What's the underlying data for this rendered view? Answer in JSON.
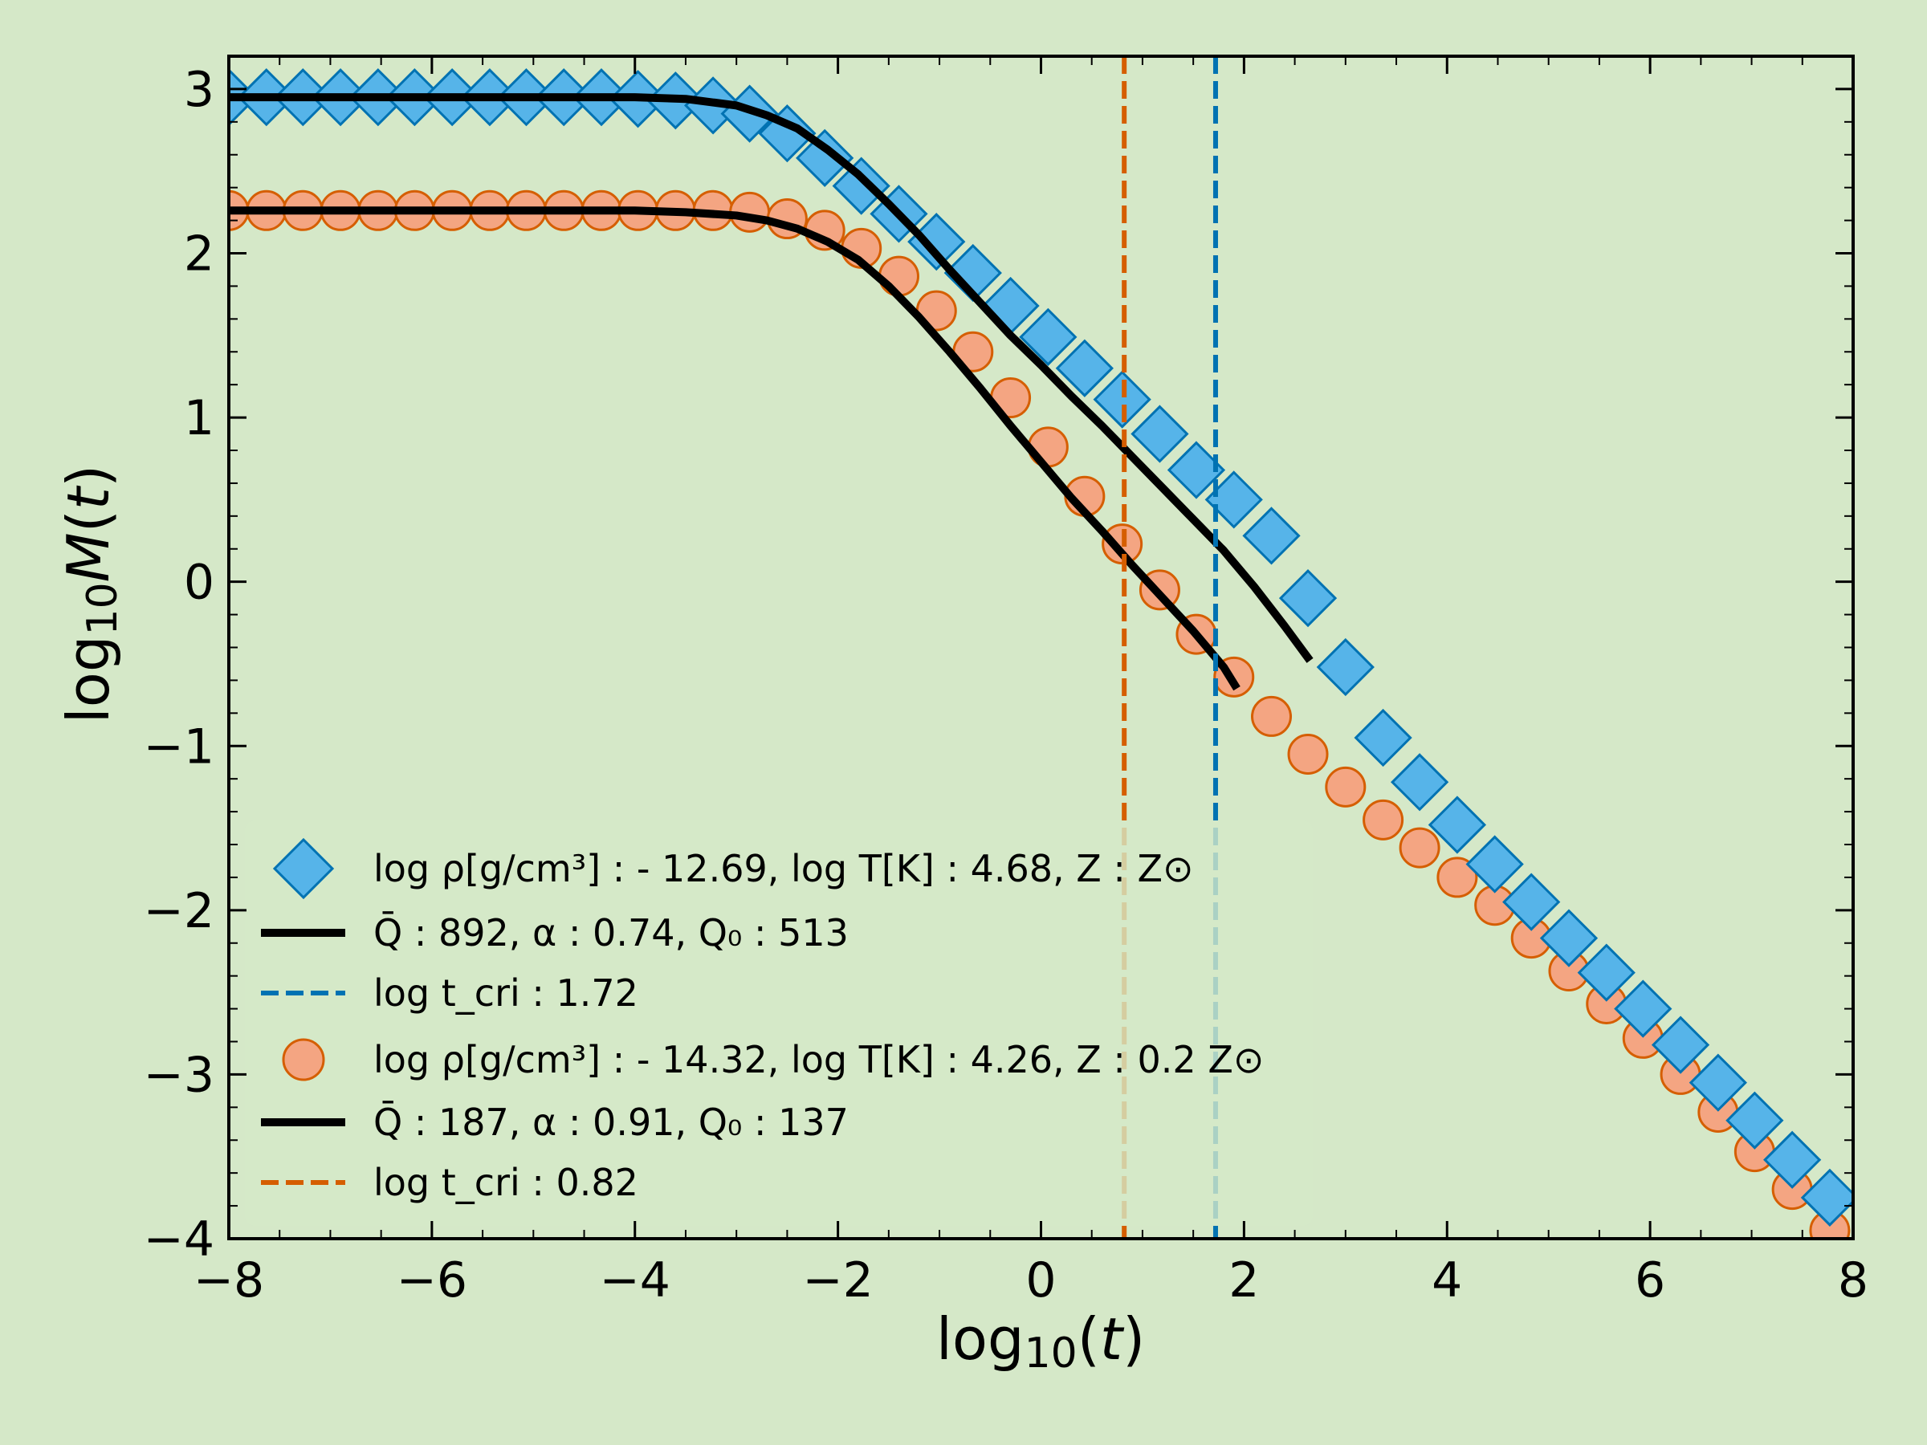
{
  "chart_data": {
    "type": "scatter",
    "title": "",
    "xlabel": "log10(t)",
    "ylabel": "log10M(t)",
    "xlim": [
      -8,
      8
    ],
    "ylim": [
      -4,
      3.2
    ],
    "xticks": [
      -8,
      -6,
      -4,
      -2,
      0,
      2,
      4,
      6,
      8
    ],
    "yticks": [
      -4,
      -3,
      -2,
      -1,
      0,
      1,
      2,
      3
    ],
    "xtick_labels": [
      "−8",
      "−6",
      "−4",
      "−2",
      "0",
      "2",
      "4",
      "6",
      "8"
    ],
    "ytick_labels": [
      "−4",
      "−3",
      "−2",
      "−1",
      "0",
      "1",
      "2",
      "3"
    ],
    "grid": false,
    "legend_position": "bottom-left",
    "colors": {
      "background": "#d5e8c8",
      "diamond_fill": "#56b4e9",
      "diamond_edge": "#0072b2",
      "circle_fill": "#f4a582",
      "circle_edge": "#d55e00",
      "blue_vline": "#0072b2",
      "orange_vline": "#d55e00",
      "fit_line": "#000000"
    },
    "series": [
      {
        "name": "log ρ[g/cm³] : - 12.69, log T[K] : 4.68, Z : Z⊙",
        "marker": "diamond",
        "x": [
          -8.0,
          -7.63,
          -7.27,
          -6.9,
          -6.53,
          -6.17,
          -5.8,
          -5.43,
          -5.07,
          -4.7,
          -4.33,
          -3.97,
          -3.6,
          -3.23,
          -2.87,
          -2.5,
          -2.13,
          -1.77,
          -1.4,
          -1.03,
          -0.67,
          -0.3,
          0.07,
          0.43,
          0.8,
          1.17,
          1.53,
          1.9,
          2.27,
          2.63,
          3.0,
          3.37,
          3.73,
          4.1,
          4.47,
          4.83,
          5.2,
          5.57,
          5.93,
          6.3,
          6.67,
          7.03,
          7.4,
          7.77
        ],
        "y": [
          2.95,
          2.95,
          2.95,
          2.95,
          2.95,
          2.95,
          2.95,
          2.95,
          2.95,
          2.95,
          2.95,
          2.94,
          2.93,
          2.9,
          2.85,
          2.73,
          2.58,
          2.41,
          2.24,
          2.07,
          1.88,
          1.68,
          1.49,
          1.3,
          1.11,
          0.9,
          0.68,
          0.5,
          0.28,
          -0.1,
          -0.52,
          -0.95,
          -1.22,
          -1.48,
          -1.72,
          -1.95,
          -2.17,
          -2.38,
          -2.6,
          -2.82,
          -3.05,
          -3.28,
          -3.52,
          -3.75
        ]
      },
      {
        "name": "Q̄ : 892, α : 0.74, Q₀ : 513",
        "marker": "line",
        "x": [
          -8.0,
          -6.0,
          -4.0,
          -3.5,
          -3.0,
          -2.7,
          -2.4,
          -2.1,
          -1.8,
          -1.5,
          -1.2,
          -0.9,
          -0.6,
          -0.3,
          0.0,
          0.3,
          0.6,
          0.9,
          1.2,
          1.5,
          1.8,
          2.1,
          2.4,
          2.65
        ],
        "y": [
          2.95,
          2.95,
          2.95,
          2.94,
          2.9,
          2.84,
          2.76,
          2.63,
          2.48,
          2.3,
          2.11,
          1.9,
          1.7,
          1.5,
          1.32,
          1.13,
          0.95,
          0.76,
          0.57,
          0.38,
          0.19,
          -0.03,
          -0.27,
          -0.48
        ]
      },
      {
        "name": "log  t_cri : 1.72",
        "marker": "vline",
        "x": [
          1.72
        ]
      },
      {
        "name": "log ρ[g/cm³] : - 14.32, log T[K] : 4.26, Z : 0.2 Z⊙",
        "marker": "circle",
        "x": [
          -8.0,
          -7.63,
          -7.27,
          -6.9,
          -6.53,
          -6.17,
          -5.8,
          -5.43,
          -5.07,
          -4.7,
          -4.33,
          -3.97,
          -3.6,
          -3.23,
          -2.87,
          -2.5,
          -2.13,
          -1.77,
          -1.4,
          -1.03,
          -0.67,
          -0.3,
          0.07,
          0.43,
          0.8,
          1.17,
          1.53,
          1.9,
          2.27,
          2.63,
          3.0,
          3.37,
          3.73,
          4.1,
          4.47,
          4.83,
          5.2,
          5.57,
          5.93,
          6.3,
          6.67,
          7.03,
          7.4,
          7.77
        ],
        "y": [
          2.26,
          2.26,
          2.26,
          2.26,
          2.26,
          2.26,
          2.26,
          2.26,
          2.26,
          2.26,
          2.26,
          2.26,
          2.26,
          2.26,
          2.25,
          2.21,
          2.14,
          2.03,
          1.86,
          1.65,
          1.4,
          1.12,
          0.82,
          0.52,
          0.23,
          -0.05,
          -0.32,
          -0.58,
          -0.82,
          -1.05,
          -1.25,
          -1.45,
          -1.62,
          -1.8,
          -1.97,
          -2.17,
          -2.37,
          -2.57,
          -2.78,
          -3.0,
          -3.23,
          -3.47,
          -3.7,
          -3.95
        ]
      },
      {
        "name": "Q̄ : 187, α : 0.91, Q₀ : 137",
        "marker": "line",
        "x": [
          -8.0,
          -6.0,
          -4.0,
          -3.5,
          -3.0,
          -2.7,
          -2.4,
          -2.1,
          -1.8,
          -1.5,
          -1.2,
          -0.9,
          -0.6,
          -0.3,
          0.0,
          0.3,
          0.6,
          0.9,
          1.2,
          1.5,
          1.8,
          1.93
        ],
        "y": [
          2.26,
          2.26,
          2.26,
          2.25,
          2.23,
          2.2,
          2.15,
          2.07,
          1.96,
          1.8,
          1.61,
          1.4,
          1.18,
          0.95,
          0.73,
          0.51,
          0.31,
          0.1,
          -0.1,
          -0.3,
          -0.52,
          -0.65
        ]
      },
      {
        "name": "log  t_cri : 0.82",
        "marker": "vline",
        "x": [
          0.82
        ]
      }
    ],
    "legend": [
      {
        "marker": "diamond",
        "text": "log ρ[g/cm³] : - 12.69, log T[K] : 4.68, Z : Z⊙"
      },
      {
        "marker": "line",
        "text": "Q̄ : 892, α : 0.74, Q₀ : 513"
      },
      {
        "marker": "dash-blue",
        "text": "log  t_cri : 1.72"
      },
      {
        "marker": "circle",
        "text": "log ρ[g/cm³] : - 14.32, log T[K] : 4.26, Z : 0.2 Z⊙"
      },
      {
        "marker": "line",
        "text": "Q̄ : 187, α : 0.91, Q₀ : 137"
      },
      {
        "marker": "dash-orange",
        "text": "log  t_cri : 0.82"
      }
    ]
  }
}
